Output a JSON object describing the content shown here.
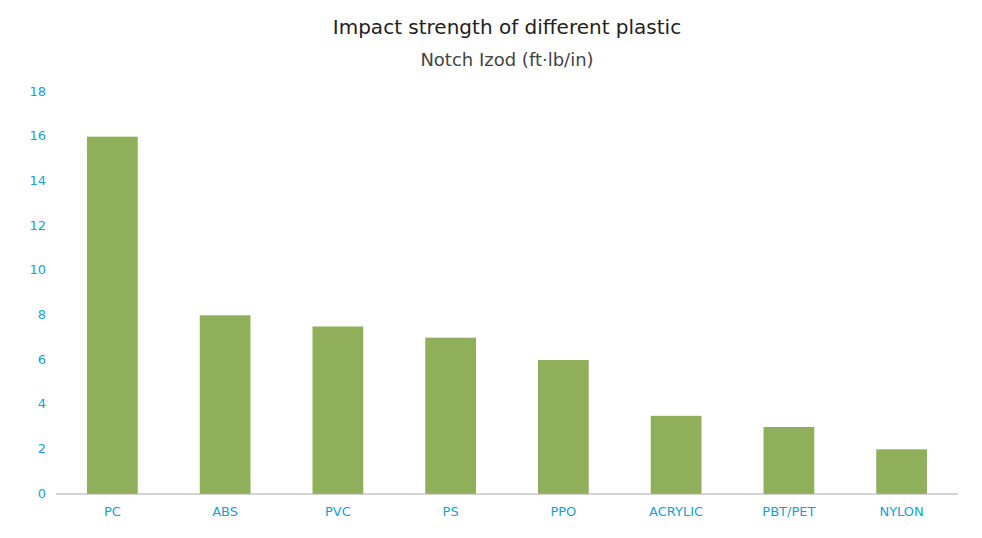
{
  "chart_data": {
    "type": "bar",
    "title": "Impact strength of different plastic",
    "subtitle": "Notch Izod (ft·lb/in)",
    "categories": [
      "PC",
      "ABS",
      "PVC",
      "PS",
      "PPO",
      "ACRYLIC",
      "PBT/PET",
      "NYLON"
    ],
    "values": [
      16,
      8,
      7.5,
      7,
      6,
      3.5,
      3,
      2
    ],
    "color": "#8faf5a",
    "ylim": [
      0,
      18
    ],
    "yticks": [
      0,
      2,
      4,
      6,
      8,
      10,
      12,
      14,
      16,
      18
    ],
    "grid": false
  }
}
